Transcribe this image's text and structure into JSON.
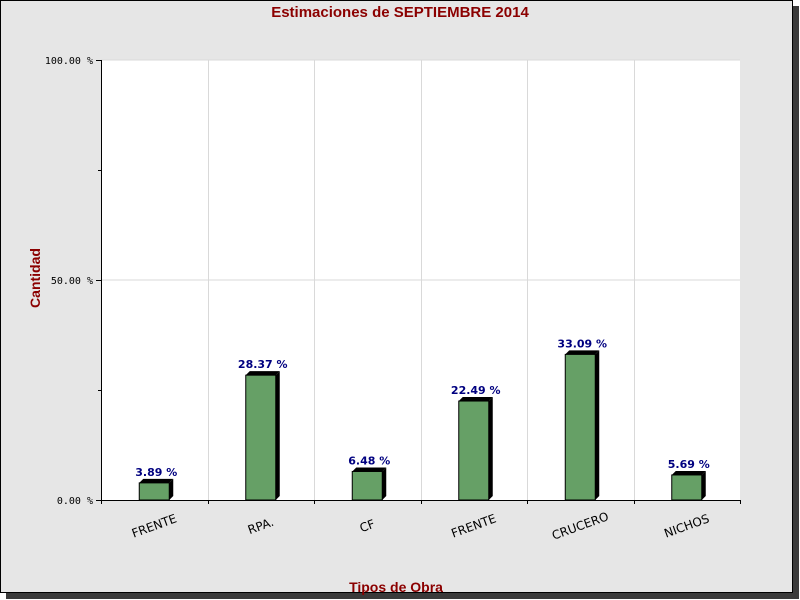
{
  "chart_data": {
    "type": "bar",
    "title": "Estimaciones de SEPTIEMBRE 2014",
    "xlabel": "Tipos de Obra",
    "ylabel": "Cantidad",
    "categories": [
      "FRENTE",
      "RPA.",
      "CF",
      "FRENTE",
      "CRUCERO",
      "NICHOS"
    ],
    "values": [
      3.89,
      28.37,
      6.48,
      22.49,
      33.09,
      5.69
    ],
    "data_labels": [
      "3.89 %",
      "28.37 %",
      "6.48 %",
      "22.49 %",
      "33.09 %",
      "5.69 %"
    ],
    "ylim": [
      0,
      100
    ],
    "y_ticks": [
      0,
      50,
      100
    ],
    "y_tick_labels": [
      "0.00 %",
      "50.00 %",
      "100.00 %"
    ],
    "grid": true,
    "legend": "none",
    "colors": {
      "bar": "#66a066",
      "bar_side": "#000000",
      "title": "#8b0000",
      "data_label": "#000080",
      "frame_bg": "#e6e6e6",
      "plot_bg": "#ffffff",
      "grid": "#d9d9d9"
    }
  }
}
